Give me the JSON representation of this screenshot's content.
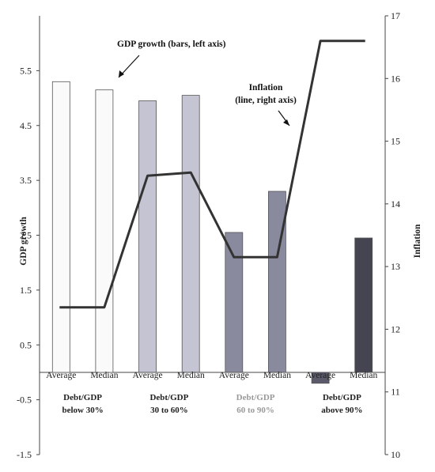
{
  "chart_data": {
    "type": "bar+line",
    "categories": [
      "Average",
      "Median",
      "Average",
      "Median",
      "Average",
      "Median",
      "Average",
      "Median"
    ],
    "groups": [
      {
        "line1": "Debt/GDP",
        "line2": "below 30%"
      },
      {
        "line1": "Debt/GDP",
        "line2": "30 to 60%"
      },
      {
        "line1": "Debt/GDP",
        "line2": "60 to 90%"
      },
      {
        "line1": "Debt/GDP",
        "line2": "above 90%"
      }
    ],
    "bar_series": {
      "axis": "left",
      "values": [
        5.3,
        5.15,
        4.95,
        5.05,
        2.55,
        3.3,
        -0.2,
        2.45
      ],
      "colors": [
        "#fafafa",
        "#fafafa",
        "#c4c4d2",
        "#c4c4d2",
        "#8a8a9e",
        "#8a8a9e",
        "#5a5a6a",
        "#454552"
      ]
    },
    "line_series": {
      "axis": "right",
      "values": [
        12.35,
        12.35,
        14.45,
        14.5,
        13.15,
        13.15,
        16.6,
        16.6
      ],
      "color": "#333333"
    },
    "y_left": {
      "label": "GDP growth",
      "min": -1.5,
      "max": 6.5,
      "ticks": [
        "5.5",
        "4.5",
        "3.5",
        "2.5",
        "1.5",
        "0.5",
        "-0.5",
        "-1.5"
      ]
    },
    "y_right": {
      "label": "Inflation",
      "min": 10,
      "max": 17,
      "ticks": [
        "17",
        "16",
        "15",
        "14",
        "13",
        "12",
        "11",
        "10"
      ]
    },
    "annotations": {
      "gdp": "GDP growth (bars, left axis)",
      "inflation_line1": "Inflation",
      "inflation_line2": "(line, right axis)"
    }
  }
}
